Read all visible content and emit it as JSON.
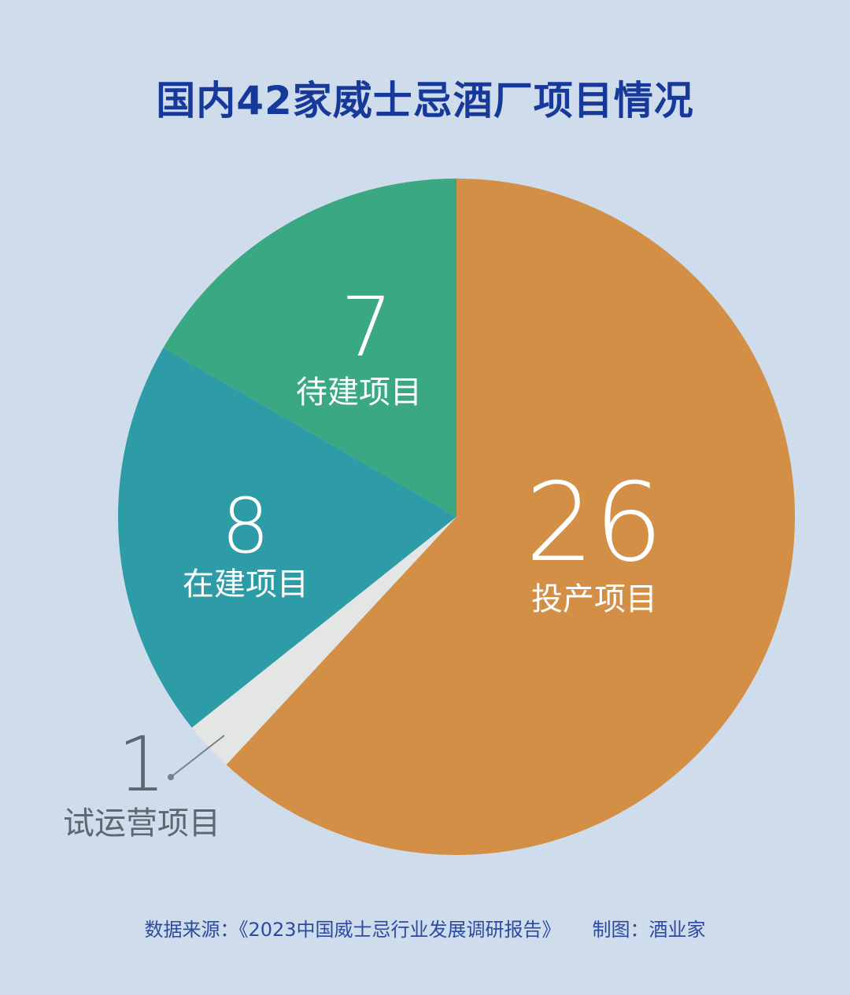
{
  "chart_data": {
    "type": "pie",
    "title": "国内42家威士忌酒厂项目情况",
    "slices": [
      {
        "name": "投产项目",
        "value": 26,
        "color": "#d38f45"
      },
      {
        "name": "试运营项目",
        "value": 1,
        "color": "#e4e6e6"
      },
      {
        "name": "在建项目",
        "value": 8,
        "color": "#2e9ca6"
      },
      {
        "name": "待建项目",
        "value": 7,
        "color": "#3aa882"
      }
    ]
  },
  "footer": {
    "source": "数据来源：《2023中国威士忌行业发展调研报告》",
    "credit": "制图：酒业家"
  }
}
